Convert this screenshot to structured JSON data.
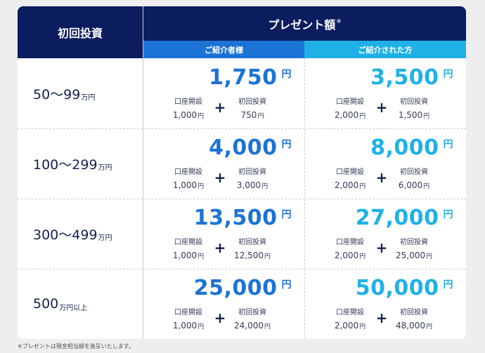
{
  "header": {
    "initial_investment": "初回投資",
    "present_amount": "プレゼント額",
    "present_mark": "※",
    "referrer": "ご紹介者様",
    "referee": "ご紹介された方"
  },
  "labels": {
    "account_opening": "口座開設",
    "initial_investment": "初回投資",
    "yen": "円",
    "plus": "+"
  },
  "colors": {
    "header_navy": "#0b1d5e",
    "referrer_blue": "#1c73d6",
    "referee_cyan": "#1fb1e6"
  },
  "rows": [
    {
      "range": "50〜99",
      "range_unit": "万円",
      "referrer": {
        "total": "1,750",
        "account": "1,000",
        "investment": "750"
      },
      "referee": {
        "total": "3,500",
        "account": "2,000",
        "investment": "1,500"
      }
    },
    {
      "range": "100〜299",
      "range_unit": "万円",
      "referrer": {
        "total": "4,000",
        "account": "1,000",
        "investment": "3,000"
      },
      "referee": {
        "total": "8,000",
        "account": "2,000",
        "investment": "6,000"
      }
    },
    {
      "range": "300〜499",
      "range_unit": "万円",
      "referrer": {
        "total": "13,500",
        "account": "1,000",
        "investment": "12,500"
      },
      "referee": {
        "total": "27,000",
        "account": "2,000",
        "investment": "25,000"
      }
    },
    {
      "range": "500",
      "range_unit": "万円以上",
      "referrer": {
        "total": "25,000",
        "account": "1,000",
        "investment": "24,000"
      },
      "referee": {
        "total": "50,000",
        "account": "2,000",
        "investment": "48,000"
      }
    }
  ],
  "footnote": "※プレゼントは現金相当額を進呈いたします。"
}
